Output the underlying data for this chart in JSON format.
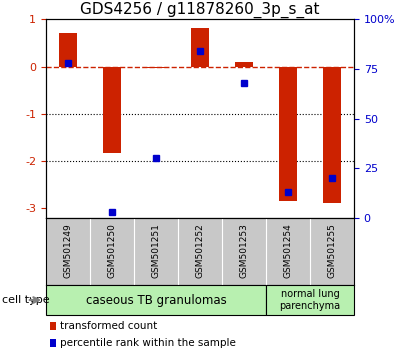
{
  "title": "GDS4256 / g11878260_3p_s_at",
  "samples": [
    "GSM501249",
    "GSM501250",
    "GSM501251",
    "GSM501252",
    "GSM501253",
    "GSM501254",
    "GSM501255"
  ],
  "red_bars": [
    0.72,
    -1.82,
    -0.03,
    0.82,
    0.1,
    -2.85,
    -2.88
  ],
  "blue_dots_pct": [
    78,
    3,
    30,
    84,
    68,
    13,
    20
  ],
  "ylim_left": [
    -3.2,
    1.0
  ],
  "ylim_right": [
    0,
    100
  ],
  "yticks_left": [
    1,
    0,
    -1,
    -2,
    -3
  ],
  "yticks_right": [
    0,
    25,
    50,
    75,
    100
  ],
  "yticklabels_left": [
    "1",
    "0",
    "-1",
    "-2",
    "-3"
  ],
  "yticklabels_right": [
    "0",
    "25",
    "50",
    "75",
    "100%"
  ],
  "bar_color": "#cc2200",
  "dot_color": "#0000cc",
  "hline_y": 0,
  "hline_color": "#cc2200",
  "hline_style": "--",
  "dotted_lines": [
    -1,
    -2
  ],
  "bg_color": "#ffffff",
  "plot_bg": "#ffffff",
  "tick_label_color_left": "#cc2200",
  "tick_label_color_right": "#0000cc",
  "legend_red_label": "transformed count",
  "legend_blue_label": "percentile rank within the sample",
  "sample_label_bg": "#c8c8c8",
  "cell_type_label": "cell type",
  "grp1_label": "caseous TB granulomas",
  "grp2_label": "normal lung\nparenchyma",
  "grp1_color": "#b8f0b0",
  "grp2_color": "#b8f0b0",
  "grp1_n": 5,
  "grp2_n": 2,
  "bar_width": 0.4,
  "title_fontsize": 11,
  "tick_fontsize": 8,
  "sample_fontsize": 6.5,
  "legend_fontsize": 7.5,
  "cell_type_fontsize": 8
}
